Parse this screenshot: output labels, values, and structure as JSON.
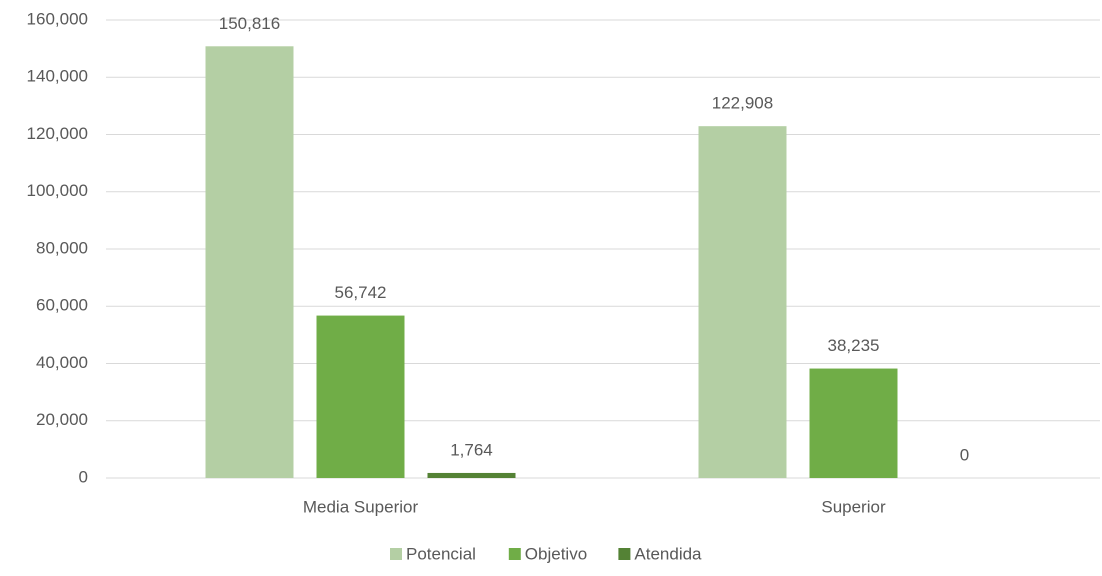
{
  "chart_data": {
    "type": "bar",
    "categories": [
      "Media Superior",
      "Superior"
    ],
    "series": [
      {
        "name": "Potencial",
        "color": "#b4cfa4",
        "values": [
          150816,
          122908
        ],
        "value_labels": [
          "150,816",
          "122,908"
        ]
      },
      {
        "name": "Objetivo",
        "color": "#70ad47",
        "values": [
          56742,
          38235
        ],
        "value_labels": [
          "56,742",
          "38,235"
        ]
      },
      {
        "name": "Atendida",
        "color": "#548235",
        "values": [
          1764,
          0
        ],
        "value_labels": [
          "1,764",
          "0"
        ]
      }
    ],
    "ylim": [
      0,
      160000
    ],
    "yticks": [
      0,
      {
        "value": 20000,
        "label": "20,000"
      },
      {
        "value": 40000,
        "label": "40,000"
      },
      {
        "value": 60000,
        "label": "60,000"
      },
      {
        "value": 80000,
        "label": "80,000"
      },
      {
        "value": 100000,
        "label": "100,000"
      },
      {
        "value": 120000,
        "label": "120,000"
      },
      {
        "value": 140000,
        "label": "140,000"
      },
      {
        "value": 160000,
        "label": "160,000"
      }
    ],
    "grid": true,
    "legend": "bottom"
  }
}
